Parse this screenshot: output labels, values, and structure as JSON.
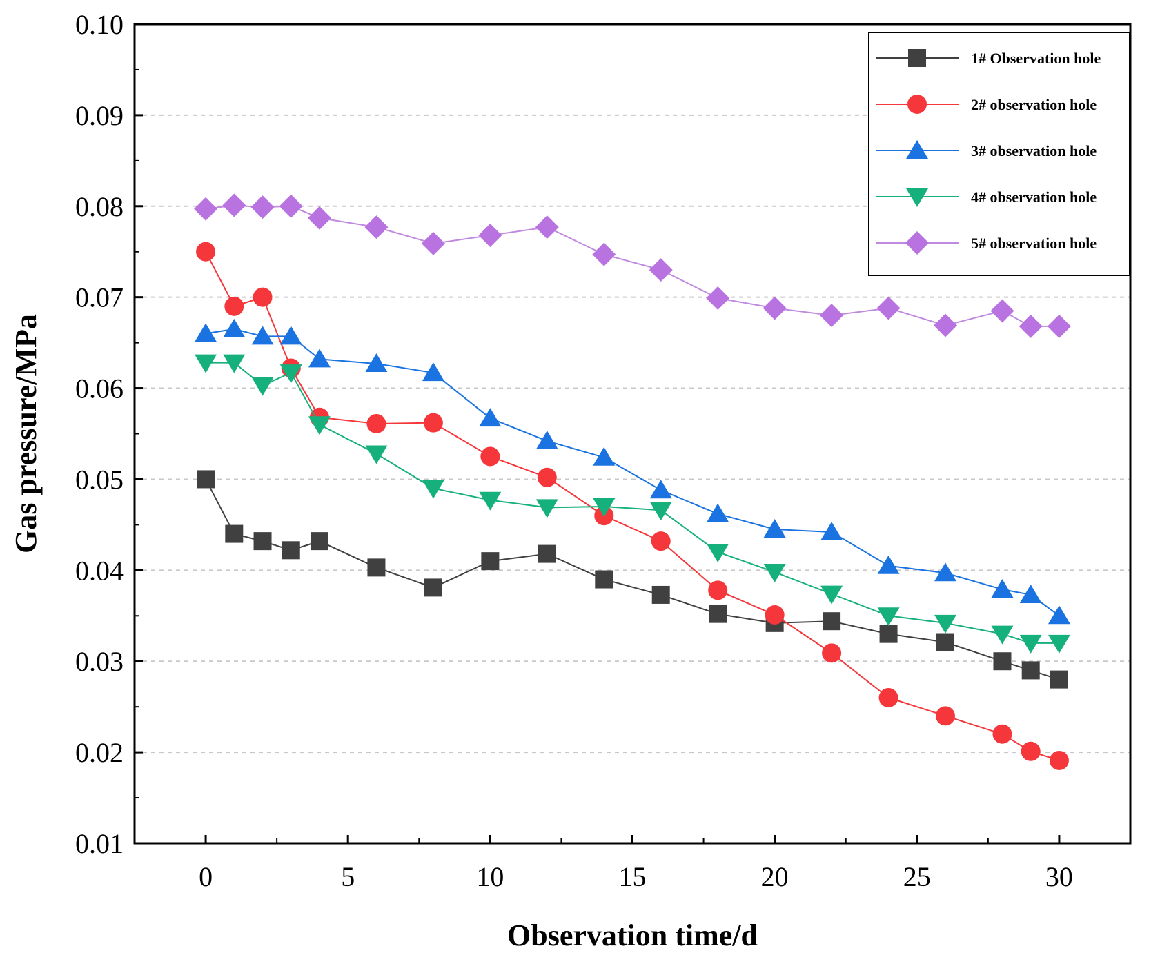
{
  "chart_data": {
    "type": "line",
    "title": "",
    "xlabel": "Observation time/d",
    "ylabel": "Gas pressure/MPa",
    "xlim": [
      -2.5,
      32.5
    ],
    "ylim": [
      0.01,
      0.1
    ],
    "xticks": [
      0,
      5,
      10,
      15,
      20,
      25,
      30
    ],
    "xtick_labels": [
      "0",
      "5",
      "10",
      "15",
      "20",
      "25",
      "30"
    ],
    "yticks": [
      0.01,
      0.02,
      0.03,
      0.04,
      0.05,
      0.06,
      0.07,
      0.08,
      0.09,
      0.1
    ],
    "ytick_labels": [
      "0.01",
      "0.02",
      "0.03",
      "0.04",
      "0.05",
      "0.06",
      "0.07",
      "0.08",
      "0.09",
      "0.10"
    ],
    "grid": "horizontal-dashed",
    "legend_position": "top-right",
    "x": [
      0,
      1,
      2,
      3,
      4,
      6,
      8,
      10,
      12,
      14,
      16,
      18,
      20,
      22,
      24,
      26,
      28,
      29,
      30
    ],
    "series": [
      {
        "name": "1# Observation hole",
        "color": "#404040",
        "line_color": "#404040",
        "marker": "square",
        "values": [
          0.05,
          0.044,
          0.0432,
          0.0422,
          0.0432,
          0.0403,
          0.0381,
          0.041,
          0.0418,
          0.039,
          0.0373,
          0.0352,
          0.0342,
          0.0344,
          0.033,
          0.0321,
          0.03,
          0.029,
          0.028
        ]
      },
      {
        "name": "2# observation hole",
        "color": "#f5363a",
        "line_color": "#f5363a",
        "marker": "circle",
        "values": [
          0.075,
          0.069,
          0.07,
          0.0622,
          0.0568,
          0.0561,
          0.0562,
          0.0525,
          0.0502,
          0.046,
          0.0432,
          0.0378,
          0.0351,
          0.0309,
          0.026,
          0.024,
          0.022,
          0.0201,
          0.0191
        ]
      },
      {
        "name": "3# observation hole",
        "color": "#1a73e0",
        "line_color": "#1a73e0",
        "marker": "triangle-up",
        "values": [
          0.066,
          0.0665,
          0.0657,
          0.0657,
          0.0632,
          0.0627,
          0.0617,
          0.0567,
          0.0542,
          0.0524,
          0.0488,
          0.0462,
          0.0445,
          0.0442,
          0.0405,
          0.0397,
          0.0379,
          0.0373,
          0.035
        ]
      },
      {
        "name": "4# observation hole",
        "color": "#16b07c",
        "line_color": "#16b07c",
        "marker": "triangle-down",
        "values": [
          0.0628,
          0.0628,
          0.0603,
          0.0617,
          0.056,
          0.0528,
          0.049,
          0.0477,
          0.0469,
          0.047,
          0.0466,
          0.042,
          0.0398,
          0.0374,
          0.035,
          0.0342,
          0.033,
          0.032,
          0.032
        ]
      },
      {
        "name": "5# observation hole",
        "color": "#b873e0",
        "line_color": "#c08ae0",
        "marker": "diamond",
        "values": [
          0.0797,
          0.0801,
          0.0799,
          0.08,
          0.0787,
          0.0777,
          0.0759,
          0.0768,
          0.0777,
          0.0747,
          0.073,
          0.0699,
          0.0688,
          0.068,
          0.0688,
          0.0669,
          0.0685,
          0.0668,
          0.0668
        ]
      }
    ]
  }
}
